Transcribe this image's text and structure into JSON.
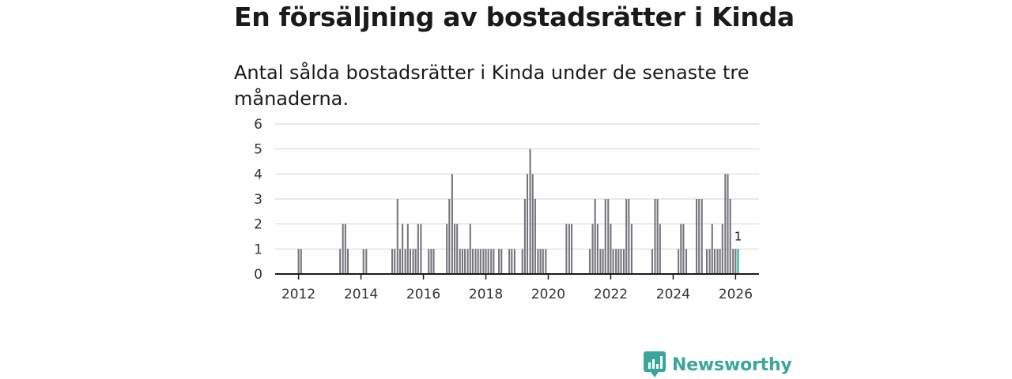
{
  "header": {
    "title": "En försäljning av bostadsrätter i Kinda",
    "subtitle": "Antal sålda bostadsrätter i Kinda under de senaste tre månaderna."
  },
  "brand": {
    "name": "Newsworthy",
    "icon": "newsworthy-logo-icon",
    "color": "#3aa79a"
  },
  "colors": {
    "bar": "#77767d",
    "highlight": "#1fae9e",
    "grid": "#d9d9d9",
    "axis": "#1a1a1a"
  },
  "chart_data": {
    "type": "bar",
    "title": "En försäljning av bostadsrätter i Kinda",
    "subtitle": "Antal sålda bostadsrätter i Kinda under de senaste tre månaderna.",
    "xlabel": "",
    "ylabel": "",
    "ylim": [
      0,
      6
    ],
    "yticks": [
      0,
      1,
      2,
      3,
      4,
      5,
      6
    ],
    "x_range": [
      2011.25,
      2026.75
    ],
    "xticks": [
      2012,
      2014,
      2016,
      2018,
      2020,
      2022,
      2024,
      2026
    ],
    "grid": true,
    "interval": "month",
    "series": [
      {
        "name": "Sålda bostadsrätter",
        "points": [
          {
            "x": 2012.0,
            "y": 1
          },
          {
            "x": 2012.08,
            "y": 1
          },
          {
            "x": 2013.33,
            "y": 1
          },
          {
            "x": 2013.42,
            "y": 2
          },
          {
            "x": 2013.5,
            "y": 2
          },
          {
            "x": 2013.58,
            "y": 1
          },
          {
            "x": 2014.08,
            "y": 1
          },
          {
            "x": 2014.17,
            "y": 1
          },
          {
            "x": 2015.0,
            "y": 1
          },
          {
            "x": 2015.08,
            "y": 1
          },
          {
            "x": 2015.17,
            "y": 3
          },
          {
            "x": 2015.25,
            "y": 1
          },
          {
            "x": 2015.33,
            "y": 2
          },
          {
            "x": 2015.42,
            "y": 1
          },
          {
            "x": 2015.5,
            "y": 2
          },
          {
            "x": 2015.58,
            "y": 1
          },
          {
            "x": 2015.67,
            "y": 1
          },
          {
            "x": 2015.75,
            "y": 1
          },
          {
            "x": 2015.83,
            "y": 2
          },
          {
            "x": 2015.92,
            "y": 2
          },
          {
            "x": 2016.17,
            "y": 1
          },
          {
            "x": 2016.25,
            "y": 1
          },
          {
            "x": 2016.33,
            "y": 1
          },
          {
            "x": 2016.75,
            "y": 2
          },
          {
            "x": 2016.83,
            "y": 3
          },
          {
            "x": 2016.92,
            "y": 4
          },
          {
            "x": 2017.0,
            "y": 2
          },
          {
            "x": 2017.08,
            "y": 2
          },
          {
            "x": 2017.17,
            "y": 1
          },
          {
            "x": 2017.25,
            "y": 1
          },
          {
            "x": 2017.33,
            "y": 1
          },
          {
            "x": 2017.42,
            "y": 1
          },
          {
            "x": 2017.5,
            "y": 2
          },
          {
            "x": 2017.58,
            "y": 1
          },
          {
            "x": 2017.67,
            "y": 1
          },
          {
            "x": 2017.75,
            "y": 1
          },
          {
            "x": 2017.83,
            "y": 1
          },
          {
            "x": 2017.92,
            "y": 1
          },
          {
            "x": 2018.0,
            "y": 1
          },
          {
            "x": 2018.08,
            "y": 1
          },
          {
            "x": 2018.17,
            "y": 1
          },
          {
            "x": 2018.25,
            "y": 1
          },
          {
            "x": 2018.42,
            "y": 1
          },
          {
            "x": 2018.5,
            "y": 1
          },
          {
            "x": 2018.75,
            "y": 1
          },
          {
            "x": 2018.83,
            "y": 1
          },
          {
            "x": 2018.92,
            "y": 1
          },
          {
            "x": 2019.17,
            "y": 1
          },
          {
            "x": 2019.25,
            "y": 3
          },
          {
            "x": 2019.33,
            "y": 4
          },
          {
            "x": 2019.42,
            "y": 5
          },
          {
            "x": 2019.5,
            "y": 4
          },
          {
            "x": 2019.58,
            "y": 3
          },
          {
            "x": 2019.67,
            "y": 1
          },
          {
            "x": 2019.75,
            "y": 1
          },
          {
            "x": 2019.83,
            "y": 1
          },
          {
            "x": 2019.92,
            "y": 1
          },
          {
            "x": 2020.58,
            "y": 2
          },
          {
            "x": 2020.67,
            "y": 2
          },
          {
            "x": 2020.75,
            "y": 2
          },
          {
            "x": 2021.33,
            "y": 1
          },
          {
            "x": 2021.42,
            "y": 2
          },
          {
            "x": 2021.5,
            "y": 3
          },
          {
            "x": 2021.58,
            "y": 2
          },
          {
            "x": 2021.67,
            "y": 1
          },
          {
            "x": 2021.75,
            "y": 1
          },
          {
            "x": 2021.83,
            "y": 3
          },
          {
            "x": 2021.92,
            "y": 3
          },
          {
            "x": 2022.0,
            "y": 2
          },
          {
            "x": 2022.08,
            "y": 1
          },
          {
            "x": 2022.17,
            "y": 1
          },
          {
            "x": 2022.25,
            "y": 1
          },
          {
            "x": 2022.33,
            "y": 1
          },
          {
            "x": 2022.42,
            "y": 1
          },
          {
            "x": 2022.5,
            "y": 3
          },
          {
            "x": 2022.58,
            "y": 3
          },
          {
            "x": 2022.67,
            "y": 2
          },
          {
            "x": 2023.33,
            "y": 1
          },
          {
            "x": 2023.42,
            "y": 3
          },
          {
            "x": 2023.5,
            "y": 3
          },
          {
            "x": 2023.58,
            "y": 2
          },
          {
            "x": 2024.17,
            "y": 1
          },
          {
            "x": 2024.25,
            "y": 2
          },
          {
            "x": 2024.33,
            "y": 2
          },
          {
            "x": 2024.42,
            "y": 1
          },
          {
            "x": 2024.75,
            "y": 3
          },
          {
            "x": 2024.83,
            "y": 3
          },
          {
            "x": 2024.92,
            "y": 3
          },
          {
            "x": 2025.08,
            "y": 1
          },
          {
            "x": 2025.17,
            "y": 1
          },
          {
            "x": 2025.25,
            "y": 2
          },
          {
            "x": 2025.33,
            "y": 1
          },
          {
            "x": 2025.42,
            "y": 1
          },
          {
            "x": 2025.5,
            "y": 1
          },
          {
            "x": 2025.58,
            "y": 2
          },
          {
            "x": 2025.67,
            "y": 4
          },
          {
            "x": 2025.75,
            "y": 4
          },
          {
            "x": 2025.83,
            "y": 3
          },
          {
            "x": 2025.92,
            "y": 1
          },
          {
            "x": 2026.0,
            "y": 1
          },
          {
            "x": 2026.08,
            "y": 1,
            "highlight": true
          }
        ]
      }
    ],
    "annotations": [
      {
        "x": 2026.08,
        "y": 1,
        "text": "1"
      }
    ]
  }
}
